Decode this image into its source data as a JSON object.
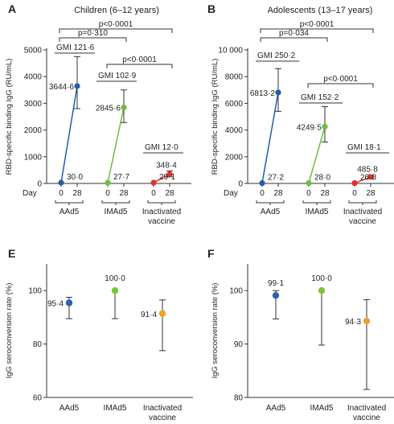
{
  "colors": {
    "aad5": "#1f5fa8",
    "imad5": "#6abf3d",
    "inactivated": "#e2302b",
    "aad5_rate": "#2e5fb0",
    "imad5_rate": "#7cc43a",
    "inactivated_rate": "#f0a12e",
    "line": "#333333"
  },
  "chart_data": [
    {
      "panel": "A",
      "type": "line",
      "title": "Children (6–12 years)",
      "ylabel": "RBD-specific binding IgG (RU/mL)",
      "ylim": [
        0,
        5000
      ],
      "yticks": [
        "0",
        "1000",
        "2000",
        "3000",
        "4000",
        "5000"
      ],
      "day_label": "Day",
      "day_ticks": [
        "0",
        "28"
      ],
      "groups": [
        "AAd5",
        "IMAd5",
        "Inactivated vaccine"
      ],
      "series": [
        {
          "name": "AAd5",
          "color_key": "aad5",
          "x": [
            "0",
            "28"
          ],
          "values": [
            30.0,
            3644.6
          ],
          "labels": [
            "30·0",
            "3644·6"
          ],
          "ci": [
            2800,
            4750
          ],
          "gmi": "GMI 121·6"
        },
        {
          "name": "IMAd5",
          "color_key": "imad5",
          "x": [
            "0",
            "28"
          ],
          "values": [
            27.7,
            2845.6
          ],
          "labels": [
            "27·7",
            "2845·6"
          ],
          "ci": [
            2280,
            3500
          ],
          "gmi": "GMI 102·9"
        },
        {
          "name": "Inactivated vaccine",
          "color_key": "inactivated",
          "x": [
            "0",
            "28"
          ],
          "values": [
            29.1,
            348.4
          ],
          "labels": [
            "29·1",
            "348·4"
          ],
          "ci": [
            250,
            470
          ],
          "gmi": "GMI 12·0"
        }
      ],
      "pvalues": [
        "p<0·0001",
        "p=0·310",
        "p<0·0001"
      ]
    },
    {
      "panel": "B",
      "type": "line",
      "title": "Adolescents (13–17 years)",
      "ylabel": "RBD-specific binding IgG (RU/mL)",
      "ylim": [
        0,
        10000
      ],
      "yticks": [
        "0",
        "2000",
        "4000",
        "6000",
        "8000",
        "10 000"
      ],
      "day_label": "Day",
      "day_ticks": [
        "0",
        "28"
      ],
      "groups": [
        "AAd5",
        "IMAd5",
        "Inactivated vaccine"
      ],
      "series": [
        {
          "name": "AAd5",
          "color_key": "aad5",
          "x": [
            "0",
            "28"
          ],
          "values": [
            27.2,
            6813.2
          ],
          "labels": [
            "27·2",
            "6813·2"
          ],
          "ci": [
            5400,
            8600
          ],
          "gmi": "GMI 250·2"
        },
        {
          "name": "IMAd5",
          "color_key": "imad5",
          "x": [
            "0",
            "28"
          ],
          "values": [
            28.0,
            4249.5
          ],
          "labels": [
            "28·0",
            "4249·5"
          ],
          "ci": [
            3100,
            5750
          ],
          "gmi": "GMI 152·2"
        },
        {
          "name": "Inactivated vaccine",
          "color_key": "inactivated",
          "x": [
            "0",
            "28"
          ],
          "values": [
            26.8,
            485.8
          ],
          "labels": [
            "26·8",
            "485·8"
          ],
          "ci": [
            380,
            620
          ],
          "gmi": "GMI 18·1"
        }
      ],
      "pvalues": [
        "p<0·0001",
        "p=0·034",
        "p<0·0001"
      ]
    },
    {
      "panel": "E",
      "type": "scatter",
      "ylabel": "IgG seroconversion rate (%)",
      "ylim": [
        60,
        110
      ],
      "yticks": [
        "60",
        "80",
        "100"
      ],
      "categories": [
        "AAd5",
        "IMAd5",
        "Inactivated vaccine"
      ],
      "color_keys": [
        "aad5_rate",
        "imad5_rate",
        "inactivated_rate"
      ],
      "values": [
        95.4,
        100.0,
        91.4
      ],
      "labels": [
        "95·4",
        "100·0",
        "91·4"
      ],
      "ci": [
        [
          89.5,
          97.5
        ],
        [
          89.5,
          100
        ],
        [
          77.5,
          96.5
        ]
      ]
    },
    {
      "panel": "F",
      "type": "scatter",
      "ylabel": "IgG seroconversion rate (%)",
      "ylim": [
        80,
        105
      ],
      "yticks": [
        "80",
        "90",
        "100"
      ],
      "categories": [
        "AAd5",
        "IMAd5",
        "Inactivated vaccine"
      ],
      "color_keys": [
        "aad5_rate",
        "imad5_rate",
        "inactivated_rate"
      ],
      "values": [
        99.1,
        100.0,
        94.3
      ],
      "labels": [
        "99·1",
        "100·0",
        "94·3"
      ],
      "ci": [
        [
          94.7,
          100
        ],
        [
          89.8,
          100
        ],
        [
          81.5,
          98.3
        ]
      ]
    }
  ]
}
